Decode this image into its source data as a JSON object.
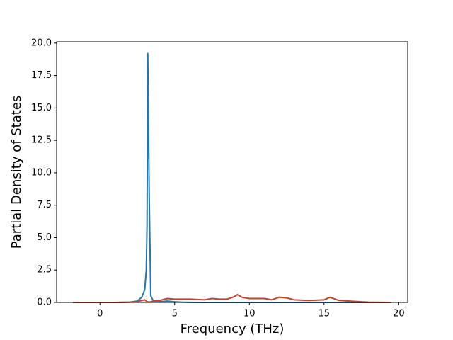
{
  "chart_data": {
    "type": "line",
    "xlabel": "Frequency (THz)",
    "ylabel": "Partial Density of States",
    "x": [
      -1.8,
      0,
      1,
      2,
      2.5,
      2.8,
      3.0,
      3.1,
      3.15,
      3.2,
      3.3,
      3.4,
      3.6,
      4.0,
      4.5,
      5.0,
      5.5,
      6.0,
      7.0,
      7.5,
      8.0,
      8.5,
      9.0,
      9.2,
      9.5,
      10.0,
      10.5,
      11.0,
      11.5,
      12.0,
      12.5,
      13.0,
      14.0,
      15.0,
      15.4,
      16.0,
      17.0,
      18.0,
      19.5
    ],
    "series": [
      {
        "color": "#1f77b4",
        "values": [
          0,
          0,
          0,
          0.02,
          0.1,
          0.4,
          1.0,
          2.5,
          6,
          19.2,
          8,
          0.5,
          0.05,
          0.05,
          0.1,
          0.05,
          0.02,
          0.01,
          0,
          0,
          0,
          0,
          0,
          0,
          0,
          0,
          0,
          0,
          0,
          0,
          0,
          0,
          0,
          0,
          0,
          0,
          0,
          0,
          0
        ]
      },
      {
        "color": "#c9402a",
        "values": [
          0,
          0,
          0,
          0.02,
          0.05,
          0.15,
          0.2,
          0.1,
          0.05,
          0.05,
          0.02,
          0.05,
          0.1,
          0.15,
          0.3,
          0.25,
          0.25,
          0.25,
          0.2,
          0.3,
          0.25,
          0.25,
          0.45,
          0.6,
          0.4,
          0.3,
          0.3,
          0.3,
          0.2,
          0.4,
          0.35,
          0.2,
          0.15,
          0.2,
          0.4,
          0.15,
          0.08,
          0.02,
          0
        ]
      }
    ],
    "xlim": [
      -2.9,
      20.6
    ],
    "ylim": [
      0,
      20.1
    ],
    "xticks": [
      0,
      5,
      10,
      15,
      20
    ],
    "yticks": [
      {
        "value": 0,
        "label": "0.0"
      },
      {
        "value": 2.5,
        "label": "2.5"
      },
      {
        "value": 5,
        "label": "5.0"
      },
      {
        "value": 7.5,
        "label": "7.5"
      },
      {
        "value": 10,
        "label": "10.0"
      },
      {
        "value": 12.5,
        "label": "12.5"
      },
      {
        "value": 15,
        "label": "15.0"
      },
      {
        "value": 17.5,
        "label": "17.5"
      },
      {
        "value": 20,
        "label": "20.0"
      }
    ]
  }
}
